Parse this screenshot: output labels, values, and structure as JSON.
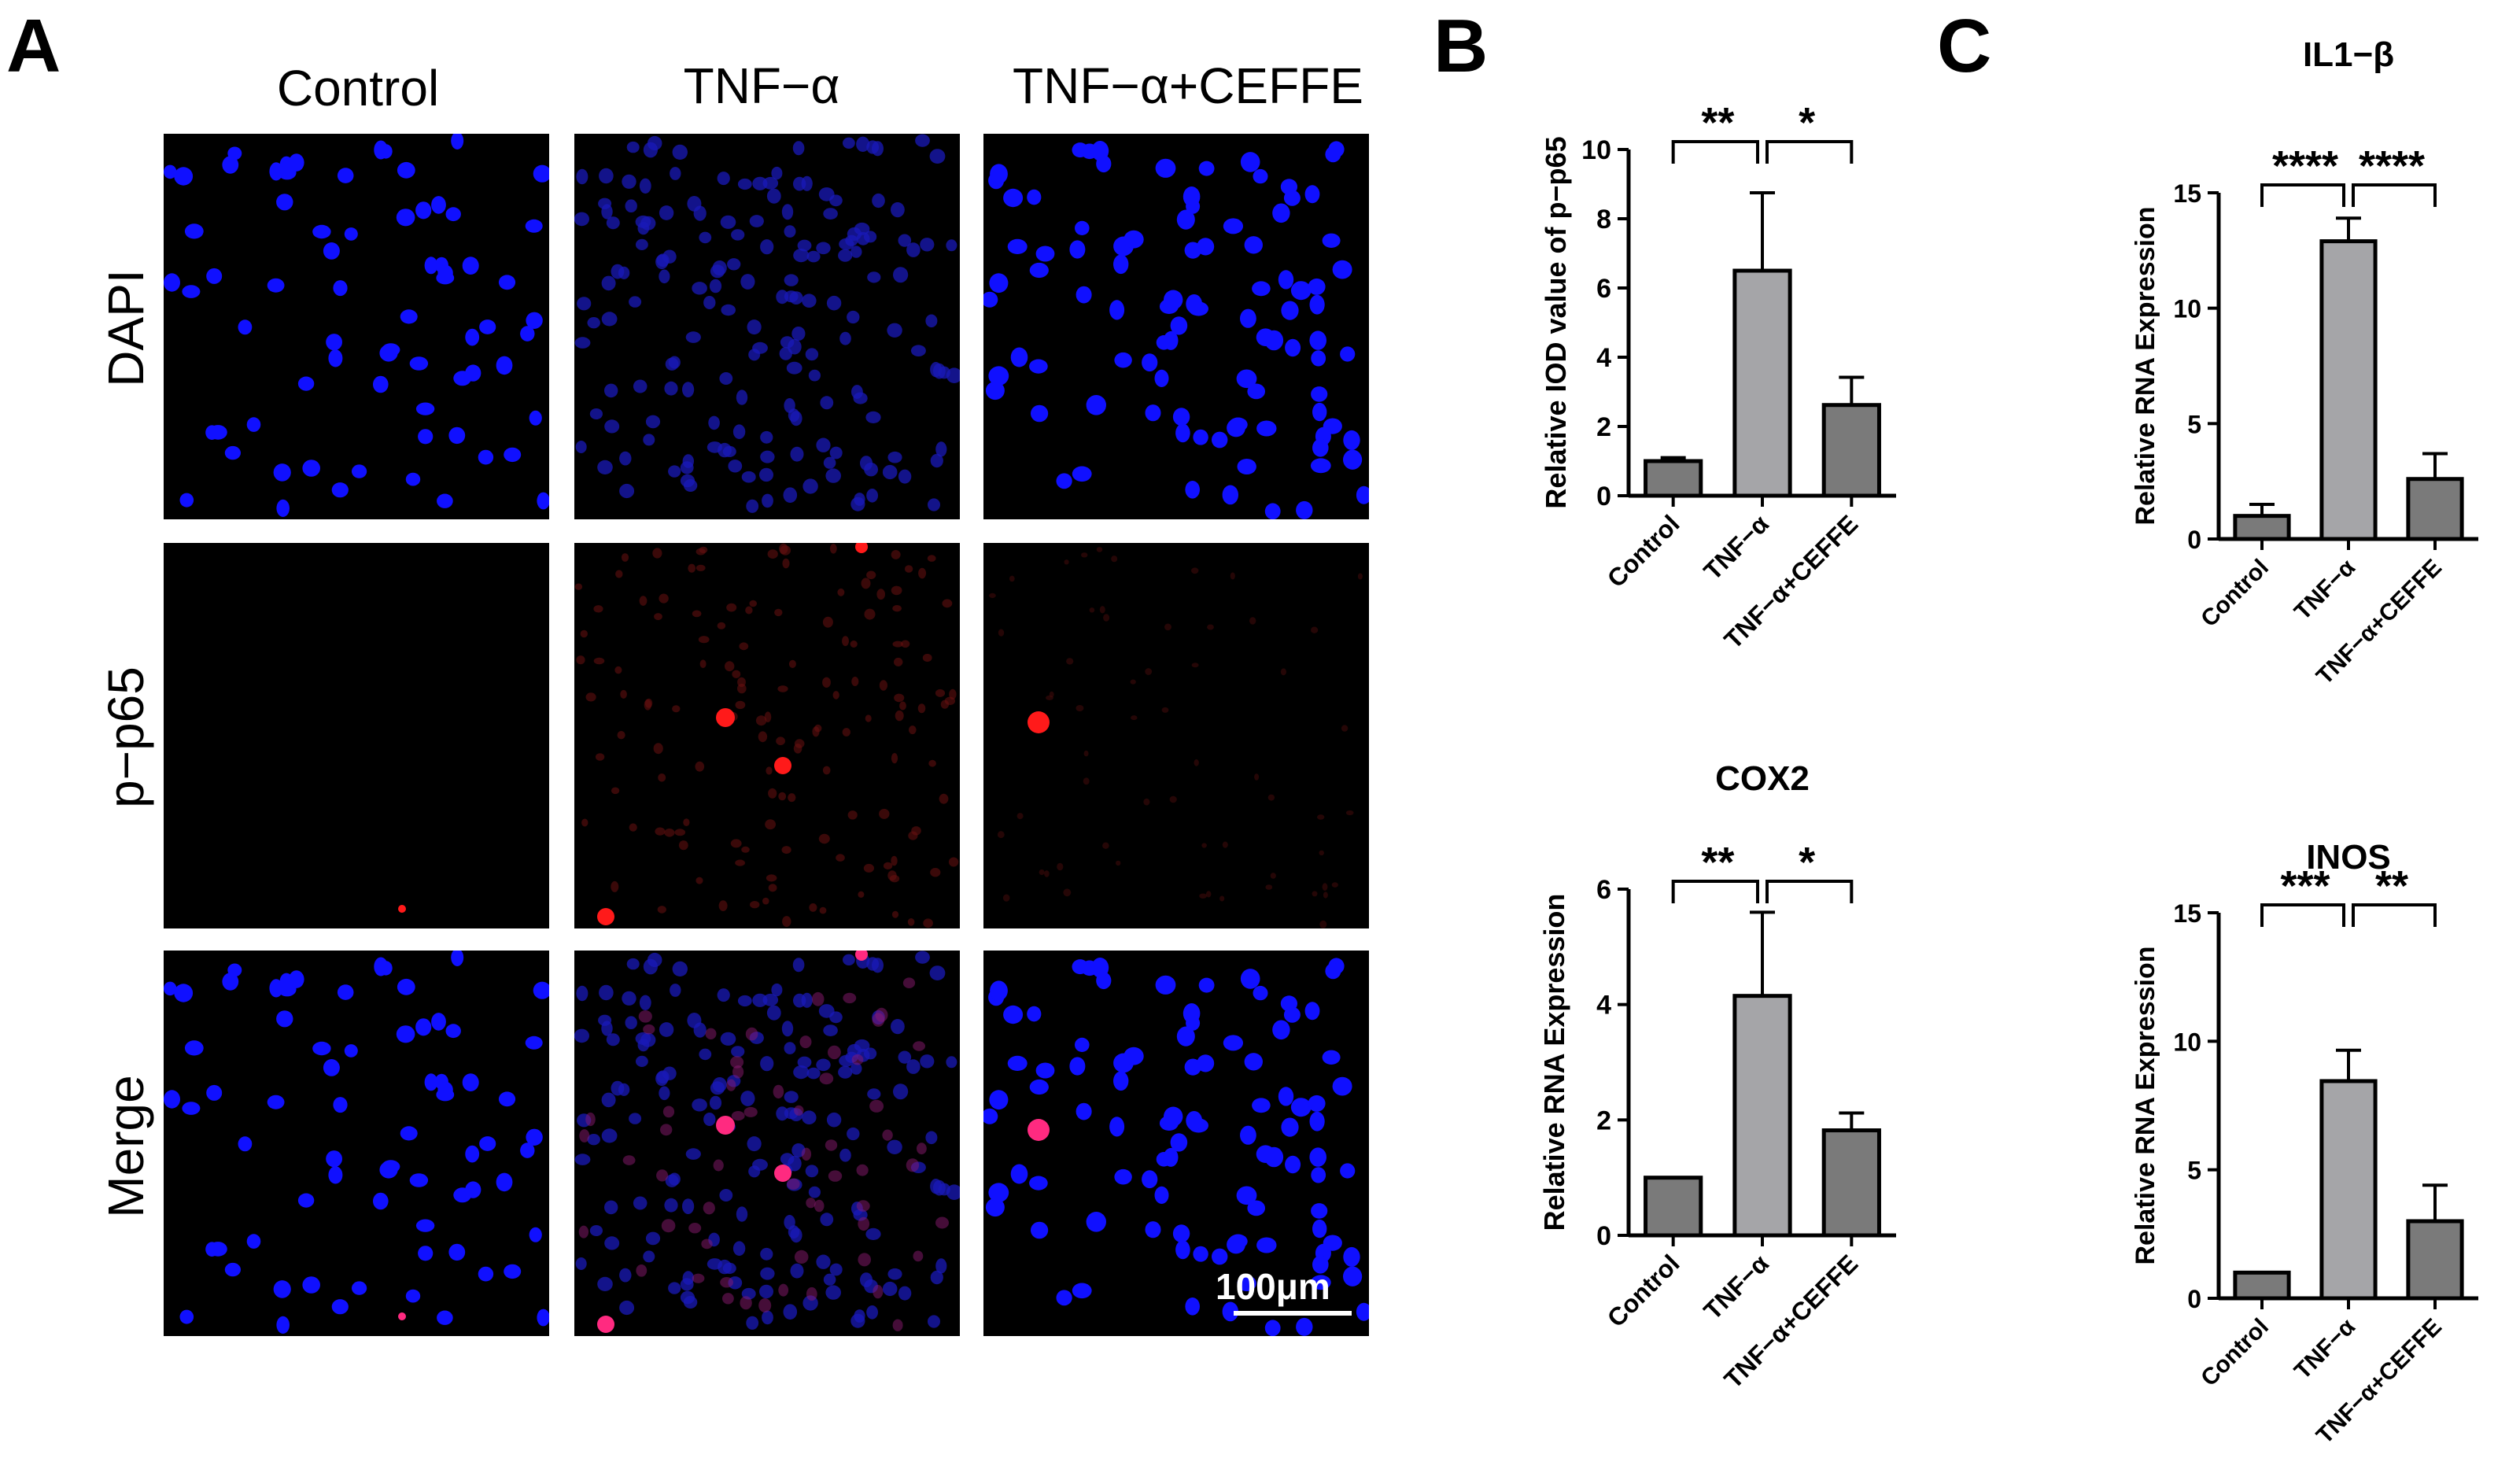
{
  "panels": {
    "A": {
      "letter": "A",
      "columns": [
        "Control",
        "TNF−α",
        "TNF−α+CEFFE"
      ],
      "rows": [
        "DAPI",
        "p−p65",
        "Merge"
      ],
      "scale_bar": "100μm",
      "colors": {
        "dapi": "#1010ff",
        "p65": "#ff1a1a",
        "merge_mix": "#ff2a80",
        "background": "#000000"
      }
    },
    "B": {
      "letter": "B"
    },
    "C": {
      "letter": "C"
    }
  },
  "chart_data": [
    {
      "id": "p65-iod",
      "type": "bar",
      "title": "",
      "ylabel": "Relative IOD value of p−p65",
      "categories": [
        "Control",
        "TNF−α",
        "TNF−α+CEFFE"
      ],
      "values": [
        1.0,
        6.5,
        2.62
      ],
      "errors": [
        0.1,
        2.25,
        0.8
      ],
      "ylim": [
        0,
        10
      ],
      "yticks": [
        0,
        2,
        4,
        6,
        8,
        10
      ],
      "significance": [
        {
          "from": 0,
          "to": 1,
          "label": "**"
        },
        {
          "from": 1,
          "to": 2,
          "label": "*"
        }
      ],
      "bar_colors": [
        "#7a7a7a",
        "#a5a5a8",
        "#7a7a7a"
      ]
    },
    {
      "id": "cox2",
      "type": "bar",
      "title": "COX2",
      "ylabel": "Relative RNA Expression",
      "categories": [
        "Control",
        "TNF−α",
        "TNF−α+CEFFE"
      ],
      "values": [
        1.0,
        4.15,
        1.82
      ],
      "errors": [
        0.0,
        1.45,
        0.3
      ],
      "ylim": [
        0,
        6
      ],
      "yticks": [
        0,
        2,
        4,
        6
      ],
      "significance": [
        {
          "from": 0,
          "to": 1,
          "label": "**"
        },
        {
          "from": 1,
          "to": 2,
          "label": "*"
        }
      ],
      "bar_colors": [
        "#7a7a7a",
        "#a5a5a8",
        "#7a7a7a"
      ]
    },
    {
      "id": "il1b",
      "type": "bar",
      "title": "IL1−β",
      "ylabel": "Relative RNA Expression",
      "categories": [
        "Control",
        "TNF−α",
        "TNF−α+CEFFE"
      ],
      "values": [
        1.0,
        12.9,
        2.6
      ],
      "errors": [
        0.5,
        1.0,
        1.1
      ],
      "ylim": [
        0,
        15
      ],
      "yticks": [
        0,
        5,
        10,
        15
      ],
      "significance": [
        {
          "from": 0,
          "to": 1,
          "label": "****"
        },
        {
          "from": 1,
          "to": 2,
          "label": "****"
        }
      ],
      "bar_colors": [
        "#7a7a7a",
        "#a5a5a8",
        "#7a7a7a"
      ]
    },
    {
      "id": "inos",
      "type": "bar",
      "title": "INOS",
      "ylabel": "Relative RNA Expression",
      "categories": [
        "Control",
        "TNF−α",
        "TNF−α+CEFFE"
      ],
      "values": [
        1.0,
        8.45,
        3.0
      ],
      "errors": [
        0.0,
        1.2,
        1.4
      ],
      "ylim": [
        0,
        15
      ],
      "yticks": [
        0,
        5,
        10,
        15
      ],
      "significance": [
        {
          "from": 0,
          "to": 1,
          "label": "***"
        },
        {
          "from": 1,
          "to": 2,
          "label": "**"
        }
      ],
      "bar_colors": [
        "#7a7a7a",
        "#a5a5a8",
        "#7a7a7a"
      ]
    }
  ]
}
